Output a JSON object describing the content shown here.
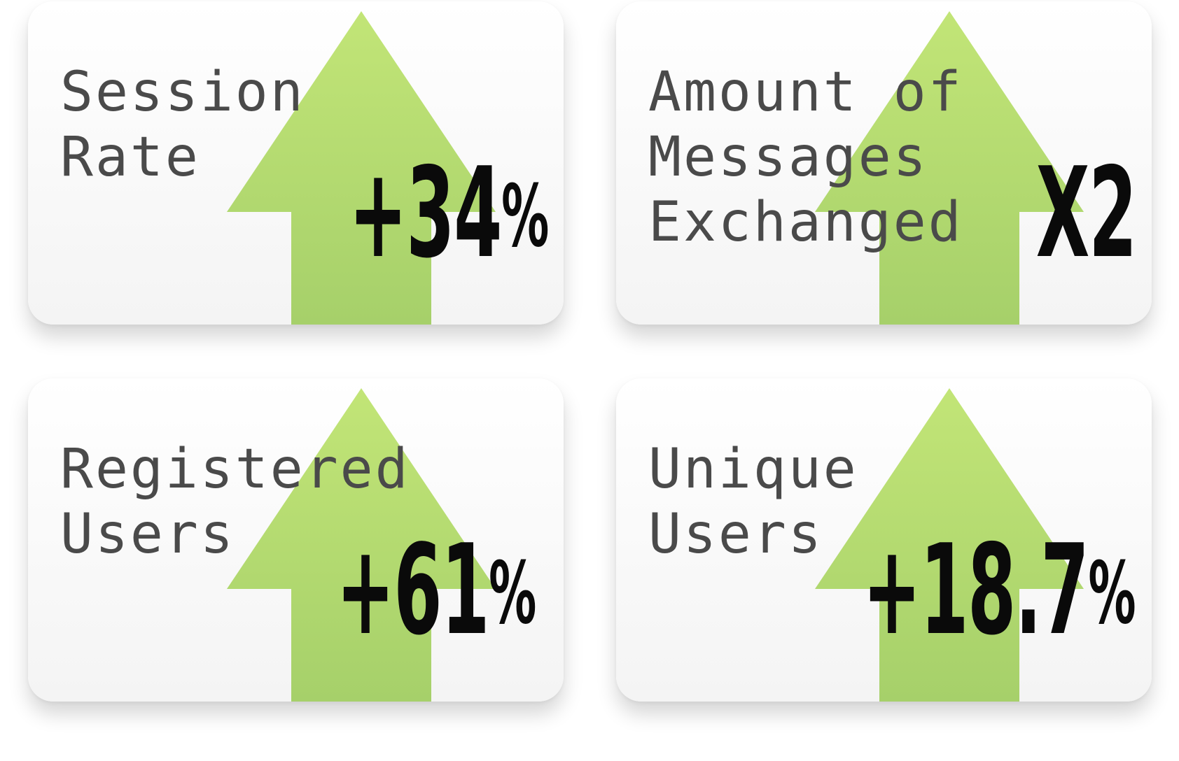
{
  "colors": {
    "arrow_top": "#c2e577",
    "arrow_bottom": "#a6d06a",
    "label_text": "#4a4a4a",
    "value_text": "#0a0a0a"
  },
  "cards": [
    {
      "label_lines": [
        "Session",
        "Rate"
      ],
      "value": "+34",
      "unit": "%",
      "icon": "up-arrow-icon"
    },
    {
      "label_lines": [
        "Amount of",
        "Messages",
        "Exchanged"
      ],
      "value": "X2",
      "unit": "",
      "icon": "up-arrow-icon"
    },
    {
      "label_lines": [
        "Registered",
        "Users"
      ],
      "value": "+61",
      "unit": "%",
      "icon": "up-arrow-icon"
    },
    {
      "label_lines": [
        "Unique",
        "Users"
      ],
      "value": "+18.7",
      "unit": "%",
      "icon": "up-arrow-icon"
    }
  ]
}
